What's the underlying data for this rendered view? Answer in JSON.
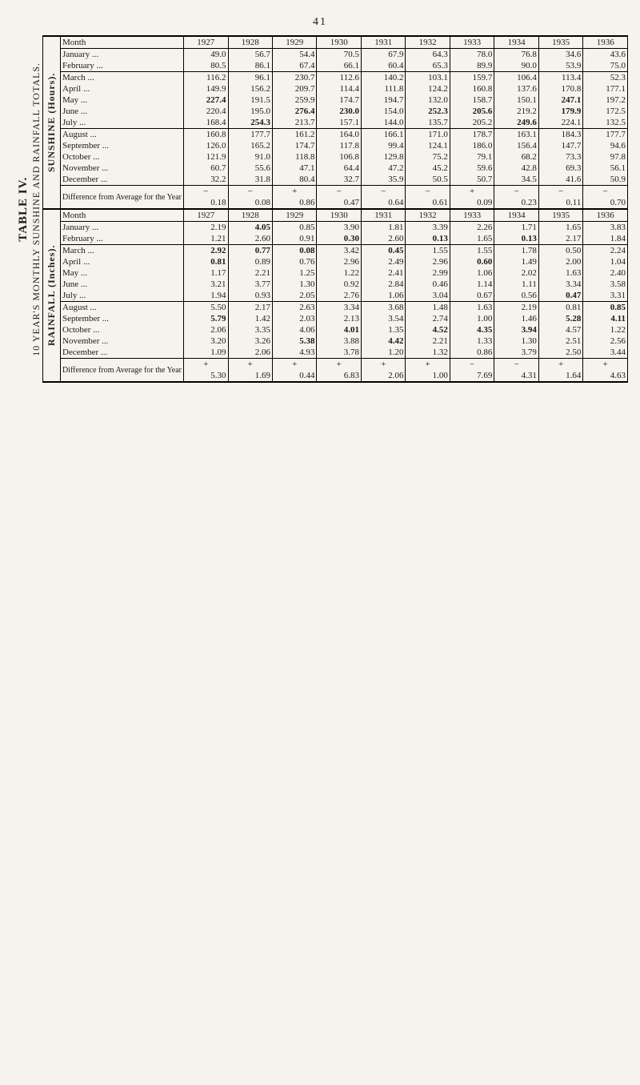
{
  "page_number": "41",
  "title_main": "TABLE IV.",
  "title_sub": "10 YEAR'S MONTHLY SUNSHINE AND RAINFALL TOTALS.",
  "section_sunshine": "SUNSHINE (Hours).",
  "section_rainfall": "RAINFALL (Inches).",
  "months": [
    "January",
    "February",
    "March",
    "April",
    "May",
    "June",
    "July",
    "August",
    "September",
    "October",
    "November",
    "December"
  ],
  "years": [
    "1927",
    "1928",
    "1929",
    "1930",
    "1931",
    "1932",
    "1933",
    "1934",
    "1935",
    "1936"
  ],
  "diff_label": "Difference from Average for the Year",
  "sunshine": {
    "rows": [
      [
        "49.0",
        "56.7",
        "54.4",
        "70.5",
        "67.9",
        "64.3",
        "78.0",
        "76.8",
        "34.6",
        "43.6"
      ],
      [
        "80.5",
        "86.1",
        "67.4",
        "66.1",
        "60.4",
        "65.3",
        "89.9",
        "90.0",
        "53.9",
        "75.0"
      ],
      [
        "116.2",
        "96.1",
        "230.7",
        "112.6",
        "140.2",
        "103.1",
        "159.7",
        "106.4",
        "113.4",
        "52.3"
      ],
      [
        "149.9",
        "156.2",
        "209.7",
        "114.4",
        "111.8",
        "124.2",
        "160.8",
        "137.6",
        "170.8",
        "177.1"
      ],
      [
        "227.4",
        "191.5",
        "259.9",
        "174.7",
        "194.7",
        "132.0",
        "158.7",
        "150.1",
        "247.1",
        "197.2"
      ],
      [
        "220.4",
        "195.0",
        "276.4",
        "230.0",
        "154.0",
        "252.3",
        "205.6",
        "219.2",
        "179.9",
        "172.5"
      ],
      [
        "168.4",
        "254.3",
        "213.7",
        "157.1",
        "144.0",
        "135.7",
        "205.2",
        "249.6",
        "224.1",
        "132.5"
      ],
      [
        "160.8",
        "177.7",
        "161.2",
        "164.0",
        "166.1",
        "171.0",
        "178.7",
        "163.1",
        "184.3",
        "177.7"
      ],
      [
        "126.0",
        "165.2",
        "174.7",
        "117.8",
        "99.4",
        "124.1",
        "186.0",
        "156.4",
        "147.7",
        "94.6"
      ],
      [
        "121.9",
        "91.0",
        "118.8",
        "106.8",
        "129.8",
        "75.2",
        "79.1",
        "68.2",
        "73.3",
        "97.8"
      ],
      [
        "60.7",
        "55.6",
        "47.1",
        "64.4",
        "47.2",
        "45.2",
        "59.6",
        "42.8",
        "69.3",
        "56.1"
      ],
      [
        "32.2",
        "31.8",
        "80.4",
        "32.7",
        "35.9",
        "50.5",
        "50.7",
        "34.5",
        "41.6",
        "50.9"
      ]
    ],
    "bold_cells": [
      [
        4,
        0
      ],
      [
        5,
        2
      ],
      [
        5,
        3
      ],
      [
        5,
        5
      ],
      [
        5,
        6
      ],
      [
        6,
        1
      ],
      [
        6,
        7
      ],
      [
        4,
        8
      ],
      [
        5,
        8
      ]
    ],
    "diff_signs": [
      "−",
      "−",
      "+",
      "−",
      "−",
      "−",
      "+",
      "−",
      "−",
      "−"
    ],
    "diff_values": [
      "0.18",
      "0.08",
      "0.86",
      "0.47",
      "0.64",
      "0.61",
      "0.09",
      "0.23",
      "0.11",
      "0.70"
    ]
  },
  "rainfall": {
    "rows": [
      [
        "2.19",
        "4.05",
        "0.85",
        "3.90",
        "1.81",
        "3.39",
        "2.26",
        "1.71",
        "1.65",
        "3.83"
      ],
      [
        "1.21",
        "2.60",
        "0.91",
        "0.30",
        "2.60",
        "0.13",
        "1.65",
        "0.13",
        "2.17",
        "1.84"
      ],
      [
        "2.92",
        "0.77",
        "0.08",
        "3.42",
        "0.45",
        "1.55",
        "1.55",
        "1.78",
        "0.50",
        "2.24"
      ],
      [
        "0.81",
        "0.89",
        "0.76",
        "2.96",
        "2.49",
        "2.96",
        "0.60",
        "1.49",
        "2.00",
        "1.04"
      ],
      [
        "1.17",
        "2.21",
        "1.25",
        "1.22",
        "2.41",
        "2.99",
        "1.06",
        "2.02",
        "1.63",
        "2.40"
      ],
      [
        "3.21",
        "3.77",
        "1.30",
        "0.92",
        "2.84",
        "0.46",
        "1.14",
        "1.11",
        "3.34",
        "3.58"
      ],
      [
        "1.94",
        "0.93",
        "2.05",
        "2.76",
        "1.06",
        "3.04",
        "0.67",
        "0.56",
        "0.47",
        "3.31"
      ],
      [
        "5.50",
        "2.17",
        "2.63",
        "3.34",
        "3.68",
        "1.48",
        "1.63",
        "2.19",
        "0.81",
        "0.85"
      ],
      [
        "5.79",
        "1.42",
        "2.03",
        "2.13",
        "3.54",
        "2.74",
        "1.00",
        "1.46",
        "5.28",
        "4.11"
      ],
      [
        "2.06",
        "3.35",
        "4.06",
        "4.01",
        "1.35",
        "4.52",
        "4.35",
        "3.94",
        "4.57",
        "1.22"
      ],
      [
        "3.20",
        "3.26",
        "5.38",
        "3.88",
        "4.42",
        "2.21",
        "1.33",
        "1.30",
        "2.51",
        "2.56"
      ],
      [
        "1.09",
        "2.06",
        "4.93",
        "3.78",
        "1.20",
        "1.32",
        "0.86",
        "3.79",
        "2.50",
        "3.44"
      ]
    ],
    "bold_cells": [
      [
        0,
        1
      ],
      [
        1,
        3
      ],
      [
        1,
        5
      ],
      [
        1,
        7
      ],
      [
        2,
        0
      ],
      [
        2,
        1
      ],
      [
        2,
        2
      ],
      [
        2,
        4
      ],
      [
        3,
        0
      ],
      [
        3,
        6
      ],
      [
        6,
        8
      ],
      [
        7,
        9
      ],
      [
        8,
        0
      ],
      [
        8,
        8
      ],
      [
        8,
        9
      ],
      [
        9,
        3
      ],
      [
        9,
        5
      ],
      [
        9,
        6
      ],
      [
        9,
        7
      ],
      [
        10,
        2
      ],
      [
        10,
        4
      ]
    ],
    "diff_signs": [
      "+",
      "+",
      "+",
      "+",
      "+",
      "+",
      "−",
      "−",
      "+",
      "+"
    ],
    "diff_values": [
      "5.30",
      "1.69",
      "0.44",
      "6.83",
      "2.06",
      "1.00",
      "7.69",
      "4.31",
      "1.64",
      "4.63"
    ]
  }
}
